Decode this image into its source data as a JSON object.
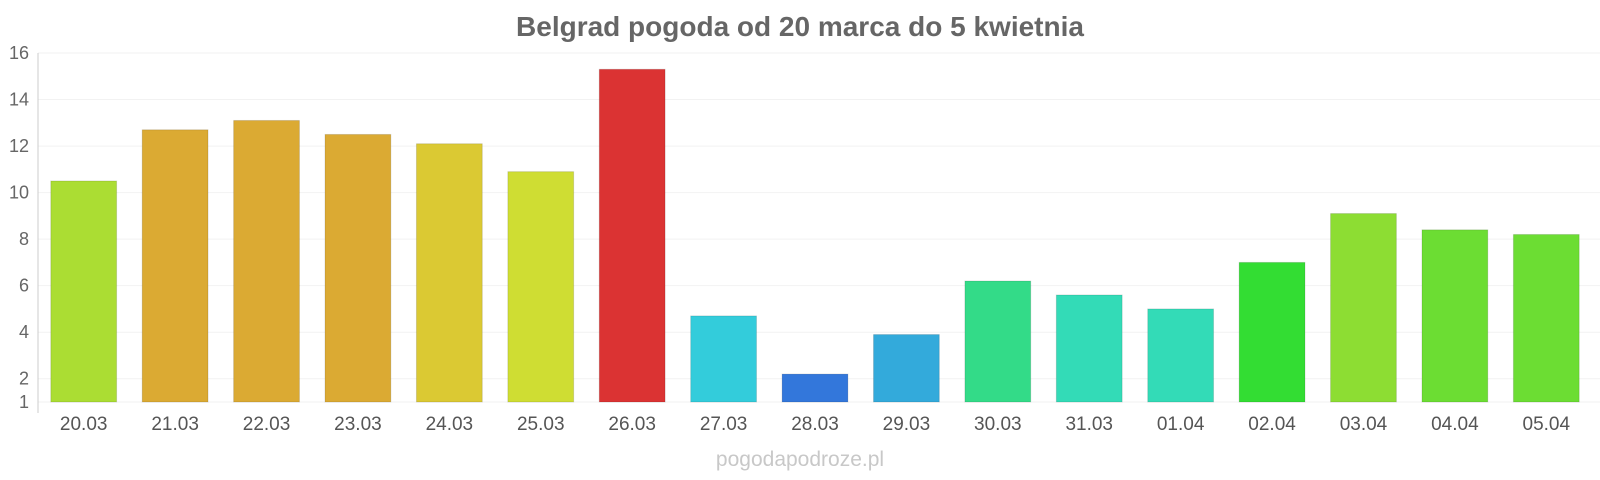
{
  "watermark": "pogodapodroze.pl",
  "chart_data": {
    "type": "bar",
    "title": "Belgrad pogoda od 20 marca do 5 kwietnia",
    "xlabel": "",
    "ylabel": "",
    "ylim": [
      1,
      16
    ],
    "yticks": [
      1,
      2,
      4,
      6,
      8,
      10,
      12,
      14,
      16
    ],
    "grid": true,
    "legend": "none",
    "categories": [
      "20.03",
      "21.03",
      "22.03",
      "23.03",
      "24.03",
      "25.03",
      "26.03",
      "27.03",
      "28.03",
      "29.03",
      "30.03",
      "31.03",
      "01.04",
      "02.04",
      "03.04",
      "04.04",
      "05.04"
    ],
    "values": [
      10.5,
      12.7,
      13.1,
      12.5,
      12.1,
      10.9,
      15.3,
      4.7,
      2.2,
      3.9,
      6.2,
      5.6,
      5.0,
      7.0,
      9.1,
      8.4,
      8.2
    ],
    "colors": [
      "#abdd33",
      "#dbaa33",
      "#dbaa33",
      "#dbaa33",
      "#dbc933",
      "#cfdd33",
      "#db3333",
      "#33ccdb",
      "#3377db",
      "#33aadb",
      "#33db88",
      "#33dbb7",
      "#33dbb7",
      "#33dd33",
      "#8ddd33",
      "#6cdd33",
      "#6cdd33"
    ]
  }
}
